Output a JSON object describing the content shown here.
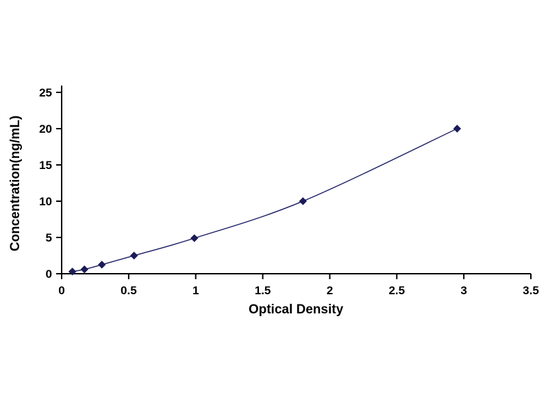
{
  "chart_data": {
    "type": "line",
    "title": "",
    "xlabel": "Optical Density",
    "ylabel": "Concentration(ng/mL)",
    "xlim": [
      0,
      3.5
    ],
    "ylim": [
      0,
      25
    ],
    "xticks": [
      0,
      0.5,
      1,
      1.5,
      2,
      2.5,
      3,
      3.5
    ],
    "yticks": [
      0,
      5,
      10,
      15,
      20,
      25
    ],
    "grid": false,
    "legend": "none",
    "line_color": "#26266e",
    "marker_color": "#1b1b58",
    "axis_color": "#000000",
    "marker_shape": "diamond",
    "points": [
      {
        "x": 0.08,
        "y": 0.3
      },
      {
        "x": 0.17,
        "y": 0.6
      },
      {
        "x": 0.3,
        "y": 1.25
      },
      {
        "x": 0.54,
        "y": 2.5
      },
      {
        "x": 0.99,
        "y": 4.9
      },
      {
        "x": 1.8,
        "y": 10.0
      },
      {
        "x": 2.95,
        "y": 20.0
      }
    ]
  }
}
